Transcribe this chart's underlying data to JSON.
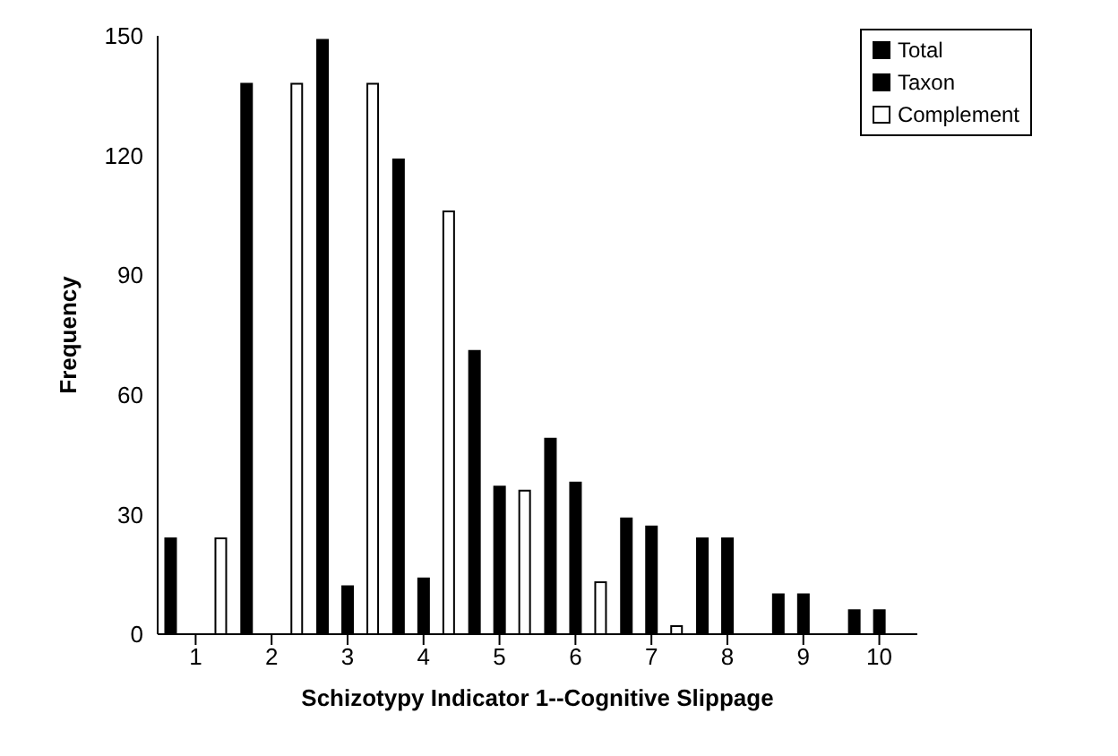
{
  "chart_data": {
    "type": "bar",
    "xlabel": "Schizotypy Indicator 1--Cognitive Slippage",
    "ylabel": "Frequency",
    "categories": [
      "1",
      "2",
      "3",
      "4",
      "5",
      "6",
      "7",
      "8",
      "9",
      "10"
    ],
    "series": [
      {
        "name": "Total",
        "color": "#000000",
        "values": [
          24,
          138,
          149,
          119,
          71,
          49,
          29,
          24,
          10,
          6
        ]
      },
      {
        "name": "Taxon",
        "color": "#000000",
        "values": [
          0,
          0,
          12,
          14,
          37,
          38,
          27,
          24,
          10,
          6
        ]
      },
      {
        "name": "Complement",
        "color": "#ffffff",
        "values": [
          24,
          138,
          138,
          106,
          36,
          13,
          2,
          0,
          0,
          0
        ]
      }
    ],
    "ylim": [
      0,
      150
    ],
    "yticks": [
      0,
      30,
      60,
      90,
      120,
      150
    ],
    "grid": false,
    "legend": "top right"
  }
}
